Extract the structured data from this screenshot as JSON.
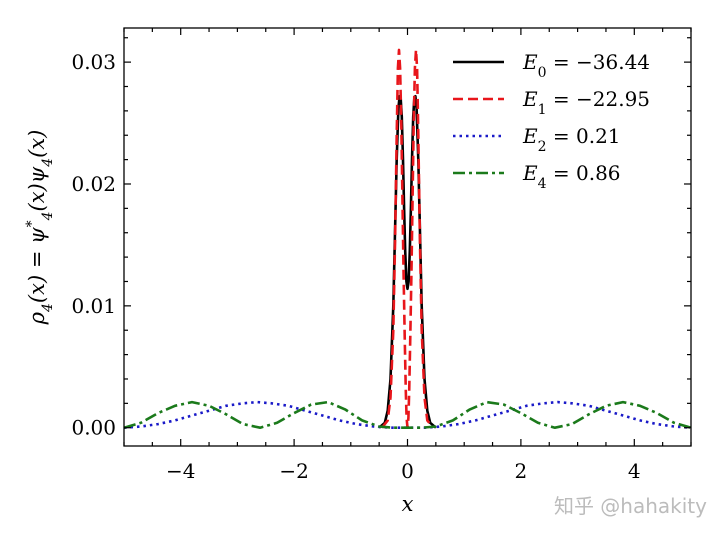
{
  "chart_data": {
    "type": "line",
    "xlabel": "x",
    "ylabel": "ρ4(x) = ψ4*(x)ψ4(x)",
    "xlim": [
      -5,
      5
    ],
    "ylim": [
      -0.0015,
      0.0328
    ],
    "xticks": [
      -4,
      -2,
      0,
      2,
      4
    ],
    "xtick_labels": [
      "−4",
      "−2",
      "0",
      "2",
      "4"
    ],
    "yticks": [
      0.0,
      0.01,
      0.02,
      0.03
    ],
    "ytick_labels": [
      "0.00",
      "0.01",
      "0.02",
      "0.03"
    ],
    "grid": false,
    "legend_position": "top-right",
    "series": [
      {
        "name": "E0 = −36.44",
        "color": "#000000",
        "style": "solid",
        "x": [
          -0.5,
          -0.4,
          -0.35,
          -0.3,
          -0.25,
          -0.22,
          -0.19,
          -0.16,
          -0.14,
          -0.12,
          -0.1,
          -0.08,
          -0.06,
          -0.04,
          -0.02,
          0.0,
          0.02,
          0.04,
          0.06,
          0.08,
          0.1,
          0.12,
          0.14,
          0.16,
          0.19,
          0.22,
          0.25,
          0.3,
          0.35,
          0.4,
          0.5
        ],
        "y": [
          0.0,
          0.0004,
          0.0014,
          0.004,
          0.01,
          0.016,
          0.022,
          0.0262,
          0.0272,
          0.027,
          0.0255,
          0.022,
          0.018,
          0.0145,
          0.012,
          0.0114,
          0.012,
          0.0145,
          0.018,
          0.022,
          0.0255,
          0.027,
          0.0272,
          0.0262,
          0.022,
          0.016,
          0.01,
          0.004,
          0.0014,
          0.0004,
          0.0
        ]
      },
      {
        "name": "E1 = −22.95",
        "color": "#e8161b",
        "style": "dashed",
        "x": [
          -0.45,
          -0.35,
          -0.3,
          -0.25,
          -0.22,
          -0.19,
          -0.17,
          -0.15,
          -0.13,
          -0.11,
          -0.09,
          -0.07,
          -0.05,
          -0.03,
          -0.015,
          0.0,
          0.015,
          0.03,
          0.05,
          0.07,
          0.09,
          0.11,
          0.13,
          0.15,
          0.17,
          0.19,
          0.22,
          0.25,
          0.3,
          0.35,
          0.45
        ],
        "y": [
          0.0,
          0.0006,
          0.0025,
          0.008,
          0.015,
          0.024,
          0.0295,
          0.031,
          0.0295,
          0.025,
          0.019,
          0.013,
          0.0075,
          0.003,
          0.0008,
          0.0,
          0.0008,
          0.003,
          0.0075,
          0.013,
          0.019,
          0.025,
          0.0295,
          0.031,
          0.0295,
          0.024,
          0.015,
          0.008,
          0.0025,
          0.0006,
          0.0
        ]
      },
      {
        "name": "E2 = 0.21",
        "color": "#1a1ac8",
        "style": "dotted",
        "x": [
          -5.0,
          -4.7,
          -4.4,
          -4.1,
          -3.8,
          -3.5,
          -3.2,
          -2.9,
          -2.65,
          -2.4,
          -2.1,
          -1.8,
          -1.5,
          -1.2,
          -0.9,
          -0.6,
          -0.3,
          0.0,
          0.3,
          0.6,
          0.9,
          1.2,
          1.5,
          1.8,
          2.1,
          2.4,
          2.65,
          2.9,
          3.2,
          3.5,
          3.8,
          4.1,
          4.4,
          4.7,
          5.0
        ],
        "y": [
          0.0,
          0.0001,
          0.0003,
          0.0006,
          0.001,
          0.0014,
          0.0018,
          0.002,
          0.0021,
          0.002,
          0.0018,
          0.0014,
          0.001,
          0.0006,
          0.0003,
          0.0001,
          0.0,
          0.0,
          0.0,
          0.0001,
          0.0003,
          0.0006,
          0.001,
          0.0014,
          0.0018,
          0.002,
          0.0021,
          0.002,
          0.0018,
          0.0014,
          0.001,
          0.0006,
          0.0003,
          0.0001,
          0.0
        ]
      },
      {
        "name": "E4 = 0.86",
        "color": "#1b7a1b",
        "style": "dashdot",
        "x": [
          -5.0,
          -4.7,
          -4.4,
          -4.1,
          -3.8,
          -3.5,
          -3.2,
          -2.9,
          -2.6,
          -2.3,
          -2.0,
          -1.7,
          -1.4,
          -1.1,
          -0.8,
          -0.5,
          -0.25,
          0.0,
          0.25,
          0.5,
          0.8,
          1.1,
          1.4,
          1.7,
          2.0,
          2.3,
          2.6,
          2.9,
          3.2,
          3.5,
          3.8,
          4.1,
          4.4,
          4.7,
          5.0
        ],
        "y": [
          0.0,
          0.0004,
          0.0012,
          0.0018,
          0.0021,
          0.0018,
          0.0011,
          0.0003,
          0.0,
          0.0004,
          0.0012,
          0.0019,
          0.0021,
          0.0015,
          0.0006,
          0.0001,
          0.0,
          0.0,
          0.0,
          0.0001,
          0.0006,
          0.0015,
          0.0021,
          0.0019,
          0.0012,
          0.0004,
          0.0,
          0.0003,
          0.0011,
          0.0018,
          0.0021,
          0.0018,
          0.0012,
          0.0004,
          0.0
        ]
      }
    ]
  },
  "legend": [
    {
      "label": "E0 = −36.44",
      "sym": "E",
      "sub": "0",
      "rest": " = −36.44"
    },
    {
      "label": "E1 = −22.95",
      "sym": "E",
      "sub": "1",
      "rest": " = −22.95"
    },
    {
      "label": "E2 = 0.21",
      "sym": "E",
      "sub": "2",
      "rest": " = 0.21"
    },
    {
      "label": "E4 = 0.86",
      "sym": "E",
      "sub": "4",
      "rest": " = 0.86"
    }
  ],
  "ylabel_parts": {
    "rho": "ρ",
    "sub1": "4",
    "mid": "(x) = ψ",
    "sub2": "4",
    "sup": "*",
    "mid2": "(x)ψ",
    "sub3": "4",
    "end": "(x)"
  },
  "watermark": "知乎 @hahakity"
}
